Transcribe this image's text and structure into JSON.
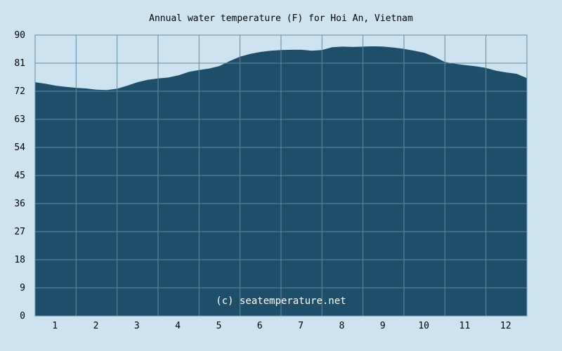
{
  "chart_data": {
    "type": "area",
    "title": "Annual water temperature (F) for Hoi An, Vietnam",
    "watermark": "(c) seatemperature.net",
    "xlabel": "",
    "ylabel": "",
    "x_ticks": [
      "1",
      "2",
      "3",
      "4",
      "5",
      "6",
      "7",
      "8",
      "9",
      "10",
      "11",
      "12"
    ],
    "y_ticks": [
      "0",
      "9",
      "18",
      "27",
      "36",
      "45",
      "54",
      "63",
      "72",
      "81",
      "90"
    ],
    "xlim": [
      0.5,
      12.5
    ],
    "ylim": [
      0,
      90
    ],
    "grid": true,
    "colors": {
      "background": "#cde3ef",
      "plot_background": "#cde3ef",
      "fill": "#1f4e68",
      "grid": "#5f8ba3"
    },
    "series": [
      {
        "x": [
          0.5,
          0.75,
          1.0,
          1.25,
          1.5,
          1.75,
          2.0,
          2.25,
          2.5,
          2.75,
          3.0,
          3.25,
          3.5,
          3.75,
          4.0,
          4.25,
          4.5,
          4.75,
          5.0,
          5.25,
          5.5,
          5.75,
          6.0,
          6.25,
          6.5,
          6.75,
          7.0,
          7.25,
          7.5,
          7.75,
          8.0,
          8.25,
          8.5,
          8.75,
          9.0,
          9.25,
          9.5,
          9.75,
          10.0,
          10.25,
          10.5,
          10.75,
          11.0,
          11.25,
          11.5,
          11.75,
          12.0,
          12.25,
          12.5
        ],
        "values": [
          74.9,
          74.4,
          73.8,
          73.4,
          73.1,
          72.9,
          72.5,
          72.4,
          72.8,
          73.8,
          74.9,
          75.7,
          76.1,
          76.4,
          77.1,
          78.2,
          78.8,
          79.3,
          80.1,
          81.7,
          83.1,
          84.0,
          84.6,
          85.0,
          85.2,
          85.3,
          85.3,
          85.0,
          85.2,
          86.1,
          86.3,
          86.2,
          86.3,
          86.4,
          86.3,
          86.0,
          85.6,
          85.0,
          84.3,
          83.0,
          81.4,
          80.8,
          80.4,
          80.0,
          79.5,
          78.6,
          78.0,
          77.6,
          76.2
        ]
      }
    ]
  }
}
